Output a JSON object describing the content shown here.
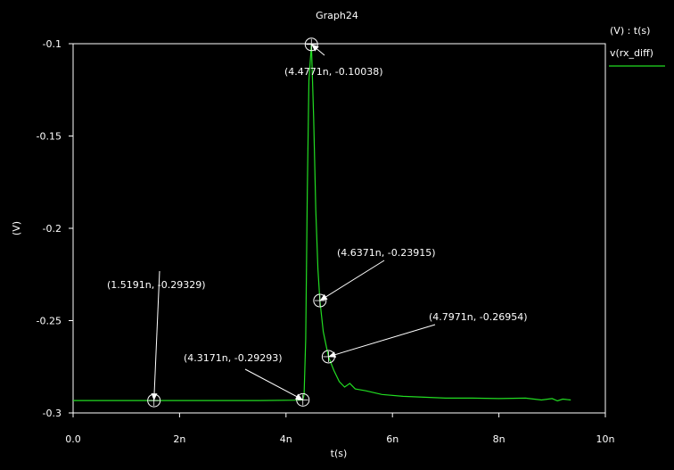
{
  "chart_data": {
    "type": "line",
    "title": "Graph24",
    "xlabel": "t(s)",
    "ylabel": "(V)",
    "xlim": [
      0,
      10
    ],
    "ylim": [
      -0.3,
      -0.1
    ],
    "x_unit": "ns",
    "x_ticks": [
      0,
      2,
      4,
      6,
      8,
      10
    ],
    "x_tick_labels": [
      "0.0",
      "2n",
      "4n",
      "6n",
      "8n",
      "10n"
    ],
    "y_ticks": [
      -0.1,
      -0.15,
      -0.2,
      -0.25,
      -0.3
    ],
    "y_tick_labels": [
      "-0.1",
      "-0.15",
      "-0.2",
      "-0.25",
      "-0.3"
    ],
    "grid": false,
    "legend_header": "(V) : t(s)",
    "legend_position": "right",
    "colors": {
      "background": "#000000",
      "axes": "#ffffff",
      "series": "#22dd22"
    },
    "series": [
      {
        "name": "v(rx_diff)",
        "x": [
          0,
          1.0,
          1.5191,
          2.5,
          3.5,
          4.2,
          4.3171,
          4.34,
          4.37,
          4.4,
          4.43,
          4.4771,
          4.52,
          4.56,
          4.6,
          4.6371,
          4.7,
          4.7971,
          4.9,
          5.0,
          5.1,
          5.2,
          5.3,
          5.5,
          5.8,
          6.2,
          6.6,
          7.0,
          7.5,
          8.0,
          8.5,
          8.8,
          9.0,
          9.1,
          9.2,
          9.35
        ],
        "y": [
          -0.2933,
          -0.2933,
          -0.29329,
          -0.2933,
          -0.2933,
          -0.2931,
          -0.29293,
          -0.29,
          -0.26,
          -0.18,
          -0.12,
          -0.10038,
          -0.14,
          -0.19,
          -0.222,
          -0.23915,
          -0.256,
          -0.26954,
          -0.277,
          -0.283,
          -0.286,
          -0.284,
          -0.287,
          -0.288,
          -0.29,
          -0.291,
          -0.2915,
          -0.292,
          -0.292,
          -0.2922,
          -0.292,
          -0.293,
          -0.2922,
          -0.2935,
          -0.2925,
          -0.293
        ]
      }
    ],
    "annotations": [
      {
        "label": "(4.4771n, -0.10038)",
        "x": 4.4771,
        "y": -0.10038
      },
      {
        "label": "(4.6371n, -0.23915)",
        "x": 4.6371,
        "y": -0.23915
      },
      {
        "label": "(4.7971n, -0.26954)",
        "x": 4.7971,
        "y": -0.26954
      },
      {
        "label": "(1.5191n, -0.29329)",
        "x": 1.5191,
        "y": -0.29329
      },
      {
        "label": "(4.3171n, -0.29293)",
        "x": 4.3171,
        "y": -0.29293
      }
    ]
  }
}
